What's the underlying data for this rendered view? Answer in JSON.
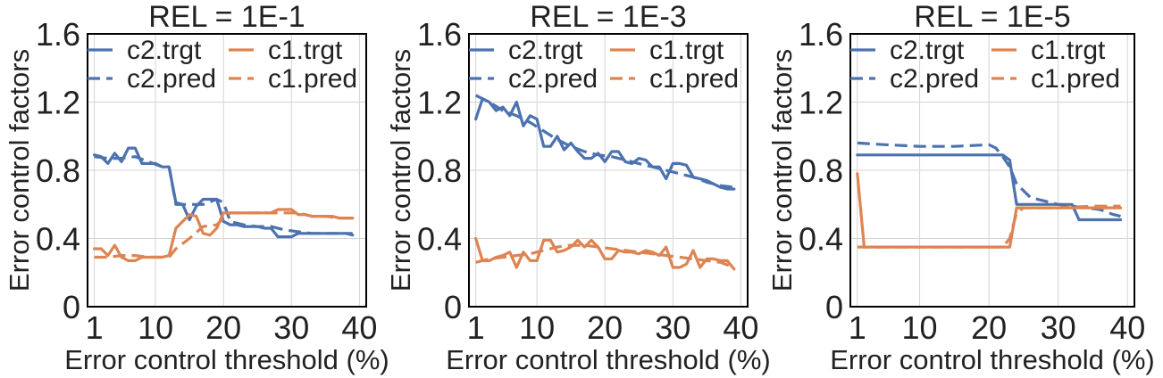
{
  "figure": {
    "colors": {
      "c2": "#4c72b0",
      "c1": "#dd8452",
      "grid": "#d4d4d4",
      "axes": "#000000",
      "text": "#222222"
    }
  },
  "chart_data": [
    {
      "type": "line",
      "title": "REL = 1E-1",
      "xlabel": "Error control threshold (%)",
      "ylabel": "Error control factors",
      "xlim": [
        0,
        41
      ],
      "ylim": [
        0,
        1.6
      ],
      "xticks": [
        1,
        10,
        20,
        30,
        40
      ],
      "yticks": [
        0,
        0.4,
        0.8,
        1.2,
        1.6
      ],
      "ytick_labels": [
        "0",
        "0.4",
        "0.8",
        "1.2",
        "1.6"
      ],
      "grid": true,
      "legend": {
        "placement": "top",
        "columns": 2
      },
      "series": [
        {
          "name": "c2.trgt",
          "style": "solid",
          "color": "c2",
          "x": [
            1,
            2,
            3,
            4,
            5,
            6,
            7,
            8,
            9,
            10,
            11,
            12,
            13,
            14,
            15,
            16,
            17,
            18,
            19,
            20,
            21,
            22,
            23,
            24,
            25,
            26,
            27,
            28,
            29,
            30,
            31,
            32,
            33,
            34,
            35,
            36,
            37,
            38,
            39
          ],
          "y": [
            0.89,
            0.88,
            0.84,
            0.9,
            0.85,
            0.93,
            0.93,
            0.84,
            0.84,
            0.84,
            0.82,
            0.82,
            0.61,
            0.6,
            0.51,
            0.59,
            0.63,
            0.63,
            0.63,
            0.5,
            0.48,
            0.48,
            0.47,
            0.47,
            0.47,
            0.46,
            0.46,
            0.41,
            0.41,
            0.41,
            0.43,
            0.43,
            0.43,
            0.43,
            0.43,
            0.43,
            0.43,
            0.43,
            0.42
          ]
        },
        {
          "name": "c2.pred",
          "style": "dashed",
          "color": "c2",
          "x": [
            1,
            3,
            5,
            7,
            9,
            11,
            12,
            13,
            15,
            17,
            19,
            20,
            21,
            23,
            25,
            27,
            29,
            31,
            33,
            35,
            37,
            39
          ],
          "y": [
            0.88,
            0.87,
            0.87,
            0.88,
            0.85,
            0.82,
            0.82,
            0.6,
            0.6,
            0.6,
            0.63,
            0.61,
            0.5,
            0.48,
            0.47,
            0.47,
            0.45,
            0.44,
            0.43,
            0.43,
            0.43,
            0.43
          ]
        },
        {
          "name": "c1.trgt",
          "style": "solid",
          "color": "c1",
          "x": [
            1,
            2,
            3,
            4,
            5,
            6,
            7,
            8,
            9,
            10,
            11,
            12,
            13,
            14,
            15,
            16,
            17,
            18,
            19,
            20,
            21,
            22,
            23,
            24,
            25,
            26,
            27,
            28,
            29,
            30,
            31,
            32,
            33,
            34,
            35,
            36,
            37,
            38,
            39
          ],
          "y": [
            0.34,
            0.34,
            0.3,
            0.36,
            0.29,
            0.27,
            0.27,
            0.29,
            0.29,
            0.29,
            0.29,
            0.3,
            0.46,
            0.5,
            0.54,
            0.53,
            0.43,
            0.42,
            0.46,
            0.55,
            0.55,
            0.55,
            0.55,
            0.55,
            0.55,
            0.55,
            0.55,
            0.57,
            0.57,
            0.57,
            0.54,
            0.54,
            0.53,
            0.53,
            0.53,
            0.53,
            0.52,
            0.52,
            0.52
          ]
        },
        {
          "name": "c1.pred",
          "style": "dashed",
          "color": "c1",
          "x": [
            1,
            3,
            5,
            7,
            9,
            11,
            12,
            13,
            15,
            17,
            19,
            20,
            21,
            23,
            25,
            27,
            29,
            31,
            33,
            35,
            37,
            39
          ],
          "y": [
            0.29,
            0.29,
            0.3,
            0.3,
            0.29,
            0.29,
            0.29,
            0.34,
            0.4,
            0.47,
            0.48,
            0.52,
            0.55,
            0.55,
            0.55,
            0.55,
            0.55,
            0.55,
            0.53,
            0.53,
            0.52,
            0.52
          ]
        }
      ]
    },
    {
      "type": "line",
      "title": "REL = 1E-3",
      "xlabel": "Error control threshold (%)",
      "ylabel": "Error control factors",
      "xlim": [
        0,
        41
      ],
      "ylim": [
        0,
        1.6
      ],
      "xticks": [
        1,
        10,
        20,
        30,
        40
      ],
      "yticks": [
        0,
        0.4,
        0.8,
        1.2,
        1.6
      ],
      "ytick_labels": [
        "0",
        "0.4",
        "0.8",
        "1.2",
        "1.6"
      ],
      "grid": true,
      "legend": {
        "placement": "top",
        "columns": 2
      },
      "series": [
        {
          "name": "c2.trgt",
          "style": "solid",
          "color": "c2",
          "x": [
            1,
            2,
            3,
            4,
            5,
            6,
            7,
            8,
            9,
            10,
            11,
            12,
            13,
            14,
            15,
            16,
            17,
            18,
            19,
            20,
            21,
            22,
            23,
            24,
            25,
            26,
            27,
            28,
            29,
            30,
            31,
            32,
            33,
            34,
            35,
            36,
            37,
            38,
            39
          ],
          "y": [
            1.1,
            1.22,
            1.2,
            1.15,
            1.17,
            1.12,
            1.2,
            1.06,
            1.12,
            1.1,
            0.94,
            0.94,
            1.0,
            0.92,
            0.96,
            0.91,
            0.87,
            0.87,
            0.9,
            0.85,
            0.91,
            0.91,
            0.85,
            0.84,
            0.87,
            0.86,
            0.82,
            0.82,
            0.75,
            0.84,
            0.84,
            0.83,
            0.76,
            0.75,
            0.74,
            0.72,
            0.7,
            0.69,
            0.69
          ]
        },
        {
          "name": "c2.pred",
          "style": "dashed",
          "color": "c2",
          "x": [
            1,
            3,
            5,
            7,
            9,
            11,
            13,
            15,
            17,
            19,
            21,
            23,
            25,
            27,
            29,
            31,
            33,
            35,
            37,
            39
          ],
          "y": [
            1.24,
            1.2,
            1.15,
            1.12,
            1.08,
            1.03,
            0.98,
            0.94,
            0.91,
            0.89,
            0.88,
            0.86,
            0.84,
            0.82,
            0.8,
            0.78,
            0.76,
            0.73,
            0.71,
            0.7
          ]
        },
        {
          "name": "c1.trgt",
          "style": "solid",
          "color": "c1",
          "x": [
            1,
            2,
            3,
            4,
            5,
            6,
            7,
            8,
            9,
            10,
            11,
            12,
            13,
            14,
            15,
            16,
            17,
            18,
            19,
            20,
            21,
            22,
            23,
            24,
            25,
            26,
            27,
            28,
            29,
            30,
            31,
            32,
            33,
            34,
            35,
            36,
            37,
            38,
            39
          ],
          "y": [
            0.4,
            0.27,
            0.27,
            0.29,
            0.3,
            0.32,
            0.23,
            0.32,
            0.27,
            0.27,
            0.39,
            0.39,
            0.32,
            0.33,
            0.35,
            0.39,
            0.35,
            0.39,
            0.35,
            0.28,
            0.28,
            0.33,
            0.32,
            0.32,
            0.31,
            0.33,
            0.32,
            0.3,
            0.35,
            0.23,
            0.23,
            0.25,
            0.33,
            0.23,
            0.28,
            0.28,
            0.27,
            0.27,
            0.22
          ]
        },
        {
          "name": "c1.pred",
          "style": "dashed",
          "color": "c1",
          "x": [
            1,
            3,
            5,
            7,
            9,
            11,
            13,
            15,
            17,
            19,
            21,
            23,
            25,
            27,
            29,
            31,
            33,
            35,
            37,
            39
          ],
          "y": [
            0.26,
            0.28,
            0.29,
            0.3,
            0.31,
            0.33,
            0.35,
            0.36,
            0.36,
            0.35,
            0.34,
            0.33,
            0.32,
            0.31,
            0.3,
            0.29,
            0.28,
            0.27,
            0.26,
            0.23
          ]
        }
      ]
    },
    {
      "type": "line",
      "title": "REL = 1E-5",
      "xlabel": "Error control threshold (%)",
      "ylabel": "Error control factors",
      "xlim": [
        0,
        41
      ],
      "ylim": [
        0,
        1.6
      ],
      "xticks": [
        1,
        10,
        20,
        30,
        40
      ],
      "yticks": [
        0,
        0.4,
        0.8,
        1.2,
        1.6
      ],
      "ytick_labels": [
        "0",
        "0.4",
        "0.8",
        "1.2",
        "1.6"
      ],
      "grid": true,
      "legend": {
        "placement": "top",
        "columns": 2
      },
      "series": [
        {
          "name": "c2.trgt",
          "style": "solid",
          "color": "c2",
          "x": [
            1,
            22,
            23,
            24,
            32,
            33,
            39
          ],
          "y": [
            0.89,
            0.89,
            0.86,
            0.6,
            0.6,
            0.51,
            0.51
          ]
        },
        {
          "name": "c2.pred",
          "style": "dashed",
          "color": "c2",
          "x": [
            1,
            5,
            10,
            15,
            20,
            21,
            22,
            23,
            24,
            26,
            28,
            30,
            32,
            34,
            36,
            38,
            39
          ],
          "y": [
            0.96,
            0.95,
            0.94,
            0.94,
            0.95,
            0.93,
            0.88,
            0.82,
            0.72,
            0.64,
            0.62,
            0.6,
            0.59,
            0.58,
            0.57,
            0.54,
            0.53
          ]
        },
        {
          "name": "c1.trgt",
          "style": "solid",
          "color": "c1",
          "x": [
            1,
            2,
            22,
            23,
            24,
            39
          ],
          "y": [
            0.78,
            0.35,
            0.35,
            0.35,
            0.58,
            0.58
          ]
        },
        {
          "name": "c1.pred",
          "style": "dashed",
          "color": "c1",
          "x": [
            1,
            5,
            10,
            15,
            20,
            22,
            23,
            24,
            25,
            26,
            30,
            35,
            39
          ],
          "y": [
            0.35,
            0.35,
            0.35,
            0.35,
            0.35,
            0.35,
            0.4,
            0.55,
            0.58,
            0.58,
            0.58,
            0.59,
            0.59
          ]
        }
      ]
    }
  ]
}
